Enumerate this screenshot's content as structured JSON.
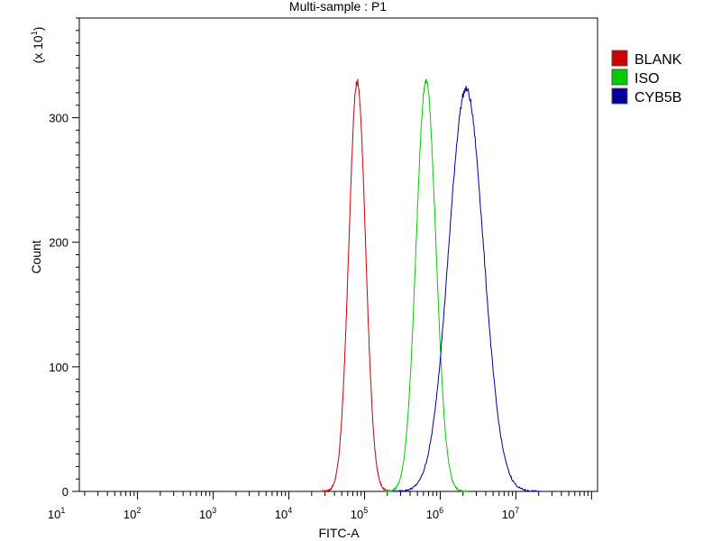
{
  "chart_data": {
    "type": "line",
    "title": "Multi-sample : P1",
    "xlabel": "FITC-A",
    "ylabel": "Count",
    "y_multiplier": {
      "base": "(x 10",
      "exponent": "1",
      "close": ")"
    },
    "x_scale": "log",
    "xlim": [
      17,
      120000000
    ],
    "ylim": [
      0,
      38
    ],
    "x_ticks": [
      {
        "base": "10",
        "exp": "1",
        "value": 10
      },
      {
        "base": "10",
        "exp": "2",
        "value": 100
      },
      {
        "base": "10",
        "exp": "3",
        "value": 1000
      },
      {
        "base": "10",
        "exp": "4",
        "value": 10000
      },
      {
        "base": "10",
        "exp": "5",
        "value": 100000
      },
      {
        "base": "10",
        "exp": "6",
        "value": 1000000
      },
      {
        "base": "10",
        "exp": "7",
        "value": 10000000
      }
    ],
    "y_ticks": [
      {
        "label": "0",
        "value": 0
      },
      {
        "label": "100",
        "value": 10
      },
      {
        "label": "200",
        "value": 20
      },
      {
        "label": "300",
        "value": 30
      }
    ],
    "legend_position": "right",
    "series": [
      {
        "name": "BLANK",
        "color": "#cc0000",
        "peak_x": 80000,
        "peak_y": 32.9,
        "log_sigma": 0.11
      },
      {
        "name": "ISO",
        "color": "#00cc00",
        "peak_x": 650000,
        "peak_y": 33.0,
        "log_sigma": 0.13
      },
      {
        "name": "CYB5B",
        "color": "#000099",
        "peak_x": 2200000,
        "peak_y": 32.3,
        "log_sigma": 0.23
      }
    ]
  }
}
